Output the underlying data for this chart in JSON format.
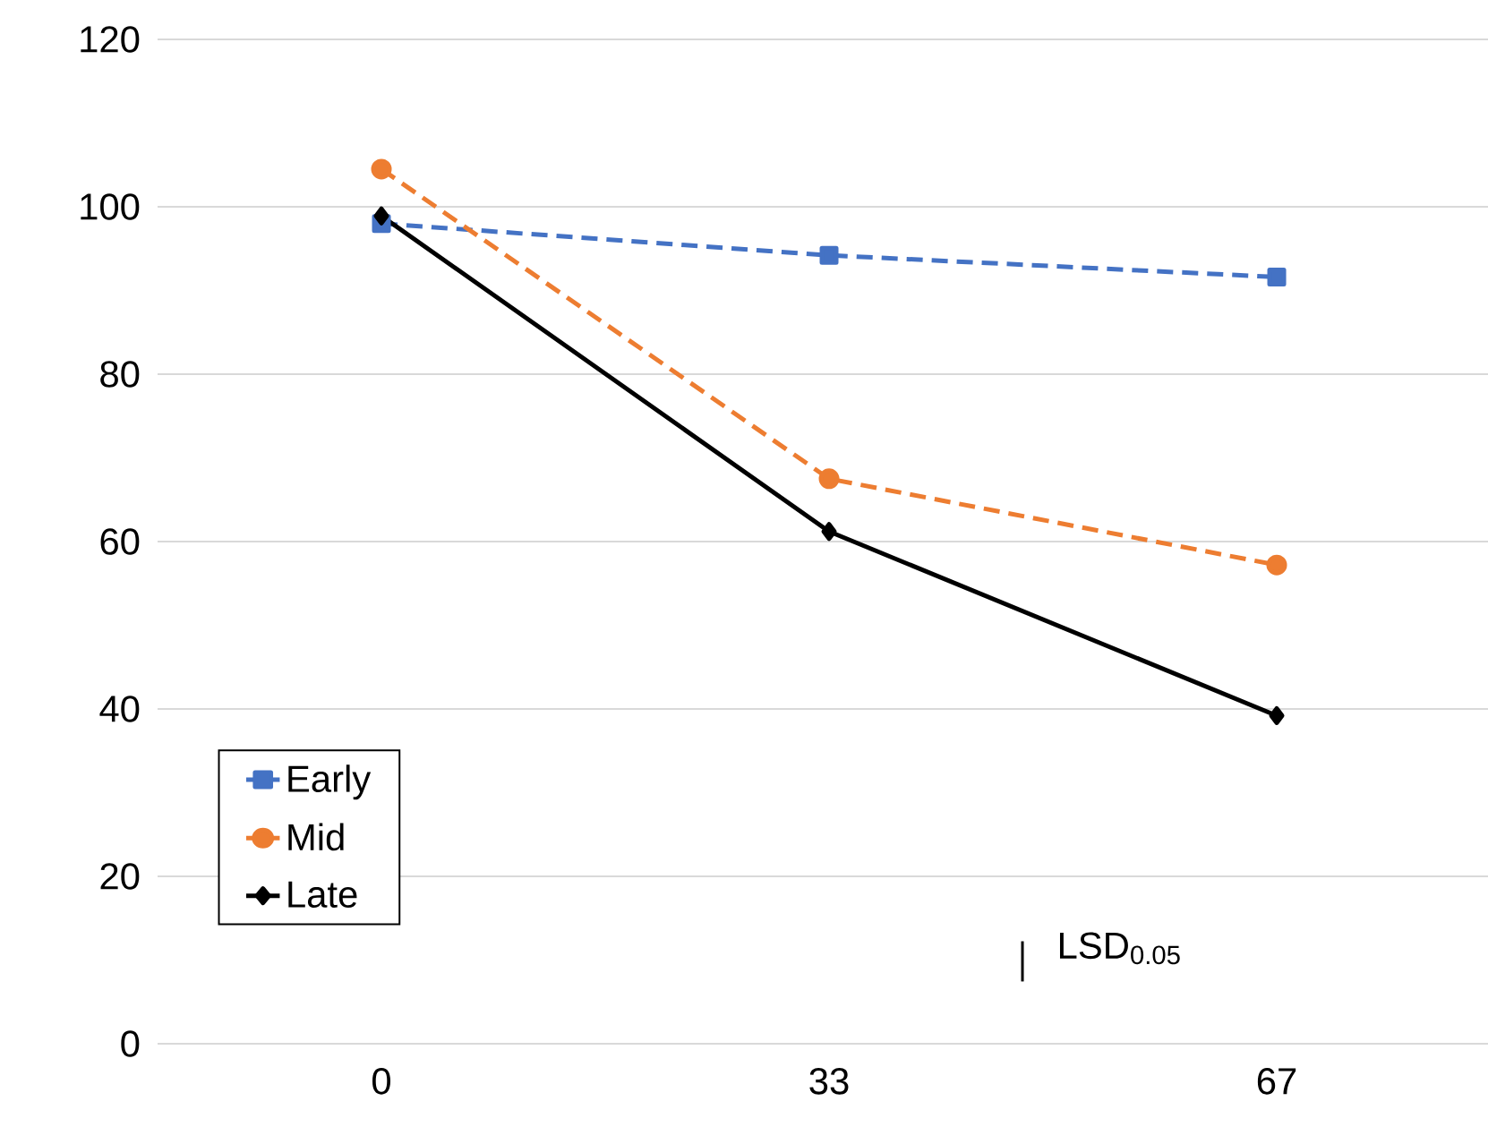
{
  "chart_data": {
    "type": "line",
    "categories": [
      "0",
      "33",
      "67"
    ],
    "series": [
      {
        "name": "Early",
        "color": "#4472c4",
        "marker": "square",
        "line_style": "dashed",
        "values": [
          98.0,
          94.2,
          91.6
        ]
      },
      {
        "name": "Mid",
        "color": "#ed7d31",
        "marker": "circle",
        "line_style": "dashed",
        "values": [
          104.5,
          67.5,
          57.2
        ]
      },
      {
        "name": "Late",
        "color": "#000000",
        "marker": "diamond",
        "line_style": "solid",
        "values": [
          98.9,
          61.2,
          39.2
        ]
      }
    ],
    "ylim": [
      0,
      120
    ],
    "yticks": [
      0,
      20,
      40,
      60,
      80,
      100,
      120
    ],
    "grid": "y",
    "legend": "bottom left",
    "annotations": [
      "LSD$_{0.05}$"
    ]
  }
}
